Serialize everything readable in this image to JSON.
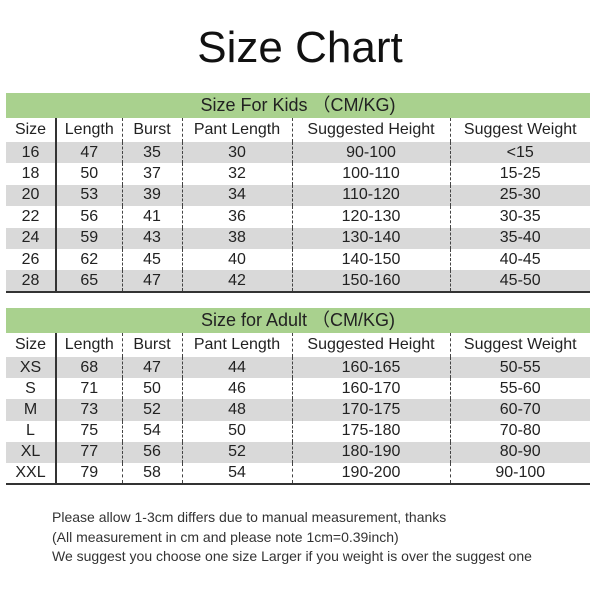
{
  "title": "Size Chart",
  "columns": [
    "Size",
    "Length",
    "Burst",
    "Pant Length",
    "Suggested Height",
    "Suggest Weight"
  ],
  "kids": {
    "heading": "Size For Kids （CM/KG)",
    "rows": [
      [
        "16",
        "47",
        "35",
        "30",
        "90-100",
        "<15"
      ],
      [
        "18",
        "50",
        "37",
        "32",
        "100-110",
        "15-25"
      ],
      [
        "20",
        "53",
        "39",
        "34",
        "110-120",
        "25-30"
      ],
      [
        "22",
        "56",
        "41",
        "36",
        "120-130",
        "30-35"
      ],
      [
        "24",
        "59",
        "43",
        "38",
        "130-140",
        "35-40"
      ],
      [
        "26",
        "62",
        "45",
        "40",
        "140-150",
        "40-45"
      ],
      [
        "28",
        "65",
        "47",
        "42",
        "150-160",
        "45-50"
      ]
    ]
  },
  "adult": {
    "heading": "Size for Adult （CM/KG)",
    "rows": [
      [
        "XS",
        "68",
        "47",
        "44",
        "160-165",
        "50-55"
      ],
      [
        "S",
        "71",
        "50",
        "46",
        "160-170",
        "55-60"
      ],
      [
        "M",
        "73",
        "52",
        "48",
        "170-175",
        "60-70"
      ],
      [
        "L",
        "75",
        "54",
        "50",
        "175-180",
        "70-80"
      ],
      [
        "XL",
        "77",
        "56",
        "52",
        "180-190",
        "80-90"
      ],
      [
        "XXL",
        "79",
        "58",
        "54",
        "190-200",
        "90-100"
      ]
    ]
  },
  "notes": [
    "Please allow 1-3cm differs due to manual measurement, thanks",
    "(All measurement in cm and please note 1cm=0.39inch)",
    "We suggest you choose one size Larger if you weight is over the suggest one"
  ],
  "colors": {
    "band": "#a9d18e",
    "stripe": "#d9d9d9"
  }
}
